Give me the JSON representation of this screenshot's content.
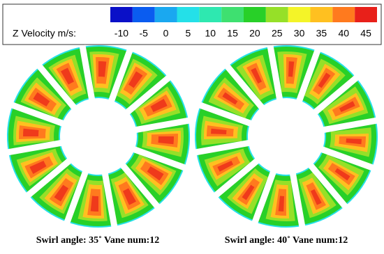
{
  "legend": {
    "title": "Z Velocity m/s:",
    "levels": [
      {
        "value": -10,
        "color": "#0a10c8"
      },
      {
        "value": -5,
        "color": "#0a5cf0"
      },
      {
        "value": 0,
        "color": "#1aa8f0"
      },
      {
        "value": 5,
        "color": "#24e0e8"
      },
      {
        "value": 10,
        "color": "#2ee8b0"
      },
      {
        "value": 15,
        "color": "#3ee070"
      },
      {
        "value": 20,
        "color": "#28d028"
      },
      {
        "value": 25,
        "color": "#96e028"
      },
      {
        "value": 30,
        "color": "#f4f428"
      },
      {
        "value": 35,
        "color": "#ffc020"
      },
      {
        "value": 40,
        "color": "#ff7a1e"
      },
      {
        "value": 45,
        "color": "#e8201a"
      }
    ]
  },
  "panels": [
    {
      "caption": "Swirl angle: 35˚  Vane num:12"
    },
    {
      "caption": "Swirl angle: 40˚  Vane num:12"
    }
  ]
}
